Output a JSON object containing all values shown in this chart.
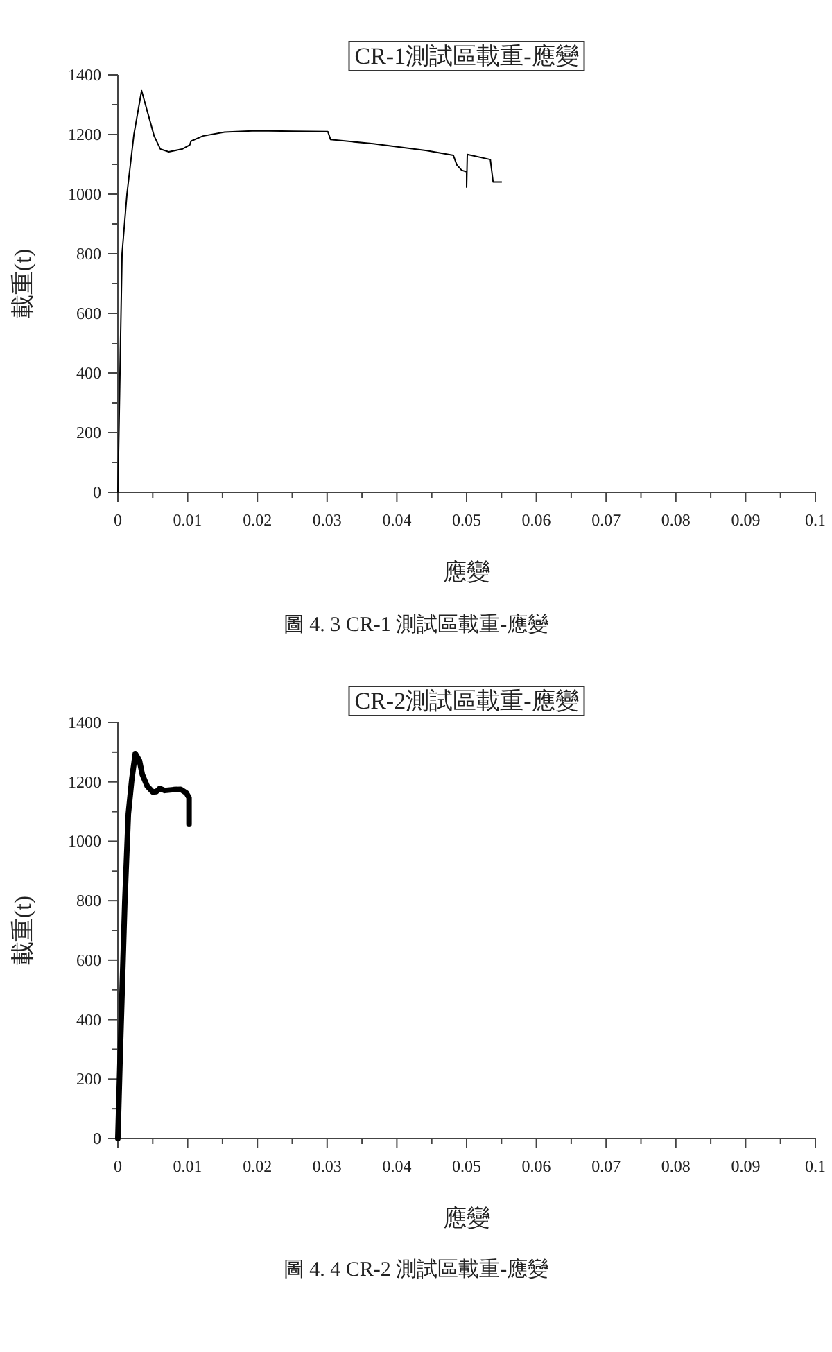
{
  "chart_data": [
    {
      "type": "line",
      "title": "CR-1測試區載重-應變",
      "xlabel": "應變",
      "ylabel": "載重(t)",
      "annotations": [
        "圖 4. 3 CR-1 測試區載重-應變"
      ],
      "series": [
        {
          "color": "#000000",
          "x": [
            0,
            0.0006,
            0.0013,
            0.0023,
            0.0034,
            0.0052,
            0.0061,
            0.0073,
            0.0092,
            0.0103,
            0.0105,
            0.0122,
            0.0153,
            0.0198,
            0.0252,
            0.0301,
            0.0305,
            0.0366,
            0.0443,
            0.0481,
            0.0486,
            0.0493,
            0.05,
            0.05,
            0.0501,
            0.0534,
            0.0538,
            0.055
          ],
          "values": [
            0,
            800,
            1000,
            1200,
            1347,
            1195,
            1151,
            1142,
            1151,
            1165,
            1178,
            1195,
            1208,
            1213,
            1211,
            1210,
            1183,
            1169,
            1146,
            1130,
            1098,
            1080,
            1075,
            1023,
            1133,
            1116,
            1041,
            1041
          ]
        }
      ],
      "xlim": [
        0,
        0.1
      ],
      "ylim": [
        0,
        1400
      ],
      "xticks": [
        0,
        {
          "value": 0.005,
          "label": null
        },
        0.01,
        {
          "value": 0.015,
          "label": null
        },
        0.02,
        {
          "value": 0.025,
          "label": null
        },
        0.03,
        {
          "value": 0.035,
          "label": null
        },
        0.04,
        {
          "value": 0.045,
          "label": null
        },
        0.05,
        {
          "value": 0.055,
          "label": null
        },
        0.06,
        {
          "value": 0.065,
          "label": null
        },
        0.07,
        {
          "value": 0.075,
          "label": null
        },
        0.08,
        {
          "value": 0.085,
          "label": null
        },
        0.09,
        {
          "value": 0.095,
          "label": null
        },
        0.1
      ],
      "yticks": [
        0,
        {
          "value": 100,
          "label": null
        },
        200,
        {
          "value": 300,
          "label": null
        },
        400,
        {
          "value": 500,
          "label": null
        },
        600,
        {
          "value": 700,
          "label": null
        },
        800,
        {
          "value": 900,
          "label": null
        },
        1000,
        {
          "value": 1100,
          "label": null
        },
        1200,
        {
          "value": 1300,
          "label": null
        },
        1400
      ],
      "grid": false
    },
    {
      "type": "line",
      "title": "CR-2測試區載重-應變",
      "xlabel": "應變",
      "ylabel": "載重(t)",
      "annotations": [
        "圖 4. 4 CR-2 測試區載重-應變"
      ],
      "series": [
        {
          "color": "#000000",
          "x": [
            0,
            0.0003,
            0.0007,
            0.001,
            0.0015,
            0.002,
            0.0025,
            0.0031,
            0.0035,
            0.0042,
            0.005,
            0.0055,
            0.006,
            0.0067,
            0.008,
            0.009,
            0.0098,
            0.0102,
            0.0102
          ],
          "values": [
            0,
            256,
            566,
            798,
            1092,
            1209,
            1295,
            1271,
            1225,
            1186,
            1166,
            1167,
            1178,
            1171,
            1174,
            1175,
            1163,
            1147,
            1057
          ]
        }
      ],
      "xlim": [
        0,
        0.1
      ],
      "ylim": [
        0,
        1400
      ],
      "xticks": [
        0,
        {
          "value": 0.005,
          "label": null
        },
        0.01,
        {
          "value": 0.015,
          "label": null
        },
        0.02,
        {
          "value": 0.025,
          "label": null
        },
        0.03,
        {
          "value": 0.035,
          "label": null
        },
        0.04,
        {
          "value": 0.045,
          "label": null
        },
        0.05,
        {
          "value": 0.055,
          "label": null
        },
        0.06,
        {
          "value": 0.065,
          "label": null
        },
        0.07,
        {
          "value": 0.075,
          "label": null
        },
        0.08,
        {
          "value": 0.085,
          "label": null
        },
        0.09,
        {
          "value": 0.095,
          "label": null
        },
        0.1
      ],
      "yticks": [
        0,
        {
          "value": 100,
          "label": null
        },
        200,
        {
          "value": 300,
          "label": null
        },
        400,
        {
          "value": 500,
          "label": null
        },
        600,
        {
          "value": 700,
          "label": null
        },
        800,
        {
          "value": 900,
          "label": null
        },
        1000,
        {
          "value": 1100,
          "label": null
        },
        1200,
        {
          "value": 1300,
          "label": null
        },
        1400
      ],
      "grid": false
    }
  ]
}
